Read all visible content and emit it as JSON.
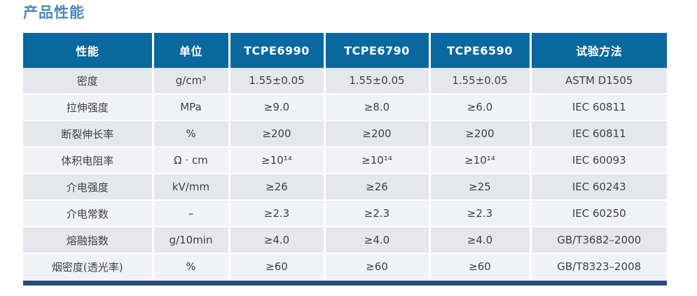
{
  "page_title": "产品性能",
  "table": {
    "columns": [
      "性能",
      "单位",
      "TCPE6990",
      "TCPE6790",
      "TCPE6590",
      "试验方法"
    ],
    "rows": [
      [
        "密度",
        "g/cm³",
        "1.55±0.05",
        "1.55±0.05",
        "1.55±0.05",
        "ASTM D1505"
      ],
      [
        "拉伸强度",
        "MPa",
        "≥9.0",
        "≥8.0",
        "≥6.0",
        "IEC 60811"
      ],
      [
        "断裂伸长率",
        "%",
        "≥200",
        "≥200",
        "≥200",
        "IEC 60811"
      ],
      [
        "体积电阻率",
        "Ω · cm",
        "≥10¹⁴",
        "≥10¹⁴",
        "≥10¹⁴",
        "IEC 60093"
      ],
      [
        "介电强度",
        "kV/mm",
        "≥26",
        "≥26",
        "≥25",
        "IEC 60243"
      ],
      [
        "介电常数",
        "–",
        "≥2.3",
        "≥2.3",
        "≥2.3",
        "IEC 60250"
      ],
      [
        "熔融指数",
        "g/10min",
        "≥4.0",
        "≥4.0",
        "≥4.0",
        "GB/T3682–2000"
      ],
      [
        "烟密度(透光率)",
        "%",
        "≥60",
        "≥60",
        "≥60",
        "GB/T8323–2008"
      ]
    ]
  },
  "colors": {
    "title": "#4a87bd",
    "header_bg": "#09689d",
    "row_odd": "#e6e6ee",
    "row_even": "#f1f2f7",
    "footer_bar": "#284a7c"
  }
}
